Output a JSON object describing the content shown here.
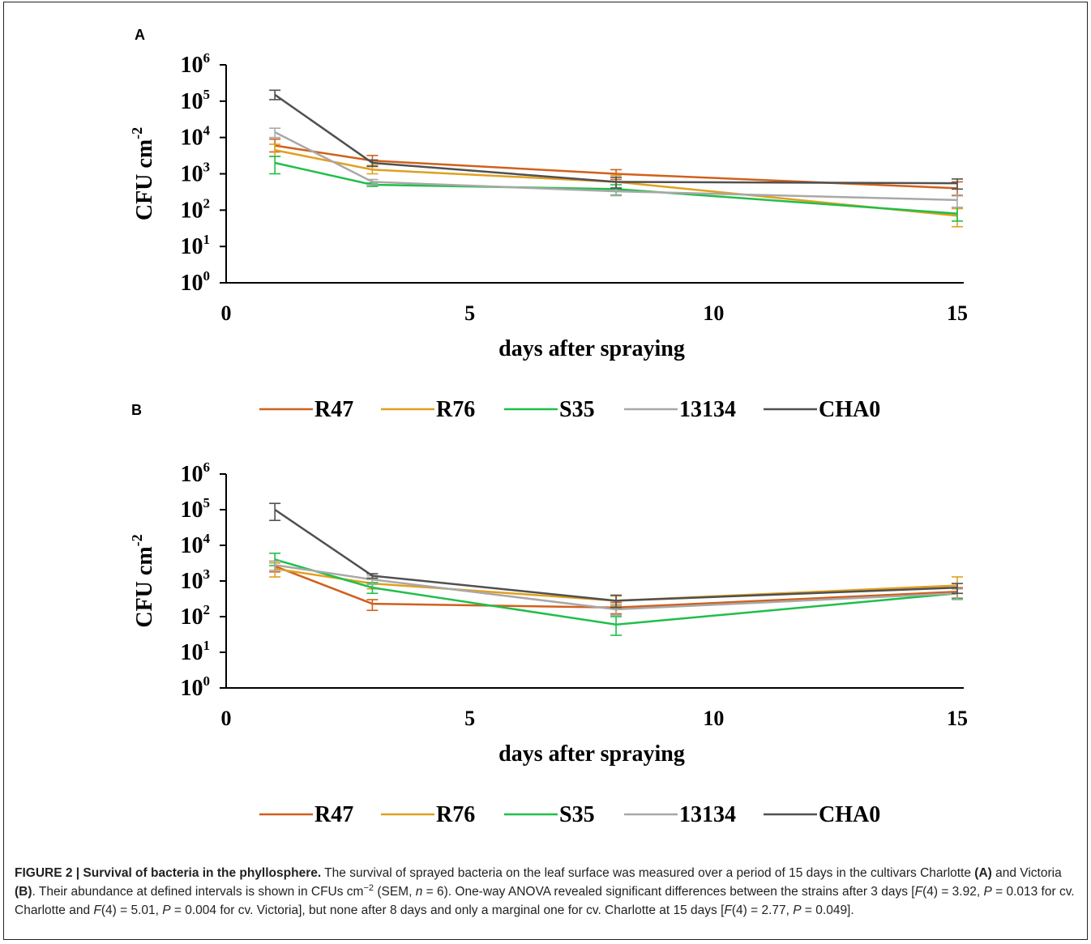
{
  "colors": {
    "R47": "#d1601c",
    "R76": "#e0a020",
    "S35": "#1fbf4a",
    "13134": "#a8a8a8",
    "CHA0": "#505050"
  },
  "chart_data": [
    {
      "type": "line",
      "panel_label": "A",
      "xlabel": "days after spraying",
      "ylabel": "CFU cm-2",
      "ylabel_base": "CFU cm",
      "ylabel_exp": "-2",
      "yscale": "log",
      "xlim": [
        0,
        15
      ],
      "ylim": [
        1,
        1000000
      ],
      "xticks": [
        "0",
        "5",
        "10",
        "15"
      ],
      "yticks": [
        {
          "base": "10",
          "exp": "0"
        },
        {
          "base": "10",
          "exp": "1"
        },
        {
          "base": "10",
          "exp": "2"
        },
        {
          "base": "10",
          "exp": "3"
        },
        {
          "base": "10",
          "exp": "4"
        },
        {
          "base": "10",
          "exp": "5"
        },
        {
          "base": "10",
          "exp": "6"
        }
      ],
      "x": [
        1,
        3,
        8,
        15
      ],
      "legend_position": "bottom",
      "series": [
        {
          "name": "R47",
          "values": [
            6000,
            2300,
            1000,
            400
          ],
          "err_low": [
            4000,
            1600,
            700,
            250
          ],
          "err_high": [
            9000,
            3200,
            1300,
            600
          ]
        },
        {
          "name": "R76",
          "values": [
            4500,
            1300,
            600,
            70
          ],
          "err_low": [
            3000,
            1000,
            400,
            35
          ],
          "err_high": [
            6500,
            1700,
            900,
            110
          ]
        },
        {
          "name": "S35",
          "values": [
            2000,
            500,
            380,
            80
          ],
          "err_low": [
            1000,
            450,
            260,
            50
          ],
          "err_high": [
            3000,
            560,
            500,
            120
          ]
        },
        {
          "name": "13134",
          "values": [
            14000,
            600,
            330,
            190
          ],
          "err_low": [
            10000,
            500,
            250,
            120
          ],
          "err_high": [
            18000,
            700,
            420,
            260
          ]
        },
        {
          "name": "CHA0",
          "values": [
            150000,
            2000,
            600,
            550
          ],
          "err_low": [
            110000,
            1600,
            400,
            380
          ],
          "err_high": [
            200000,
            2400,
            800,
            720
          ]
        }
      ]
    },
    {
      "type": "line",
      "panel_label": "B",
      "xlabel": "days after spraying",
      "ylabel": "CFU cm-2",
      "ylabel_base": "CFU cm",
      "ylabel_exp": "-2",
      "yscale": "log",
      "xlim": [
        0,
        15
      ],
      "ylim": [
        1,
        1000000
      ],
      "xticks": [
        "0",
        "5",
        "10",
        "15"
      ],
      "yticks": [
        {
          "base": "10",
          "exp": "0"
        },
        {
          "base": "10",
          "exp": "1"
        },
        {
          "base": "10",
          "exp": "2"
        },
        {
          "base": "10",
          "exp": "3"
        },
        {
          "base": "10",
          "exp": "4"
        },
        {
          "base": "10",
          "exp": "5"
        },
        {
          "base": "10",
          "exp": "6"
        }
      ],
      "x": [
        1,
        3,
        8,
        15
      ],
      "legend_position": "bottom",
      "series": [
        {
          "name": "R47",
          "values": [
            2600,
            230,
            180,
            500
          ],
          "err_low": [
            1800,
            150,
            120,
            330
          ],
          "err_high": [
            3600,
            300,
            250,
            650
          ]
        },
        {
          "name": "R76",
          "values": [
            2200,
            850,
            280,
            750
          ],
          "err_low": [
            1300,
            600,
            200,
            450
          ],
          "err_high": [
            3200,
            1100,
            380,
            1300
          ]
        },
        {
          "name": "S35",
          "values": [
            4000,
            650,
            60,
            450
          ],
          "err_low": [
            2700,
            450,
            30,
            320
          ],
          "err_high": [
            6000,
            900,
            100,
            600
          ]
        },
        {
          "name": "13134",
          "values": [
            2800,
            1100,
            160,
            450
          ],
          "err_low": [
            2000,
            800,
            110,
            300
          ],
          "err_high": [
            3600,
            1400,
            220,
            600
          ]
        },
        {
          "name": "CHA0",
          "values": [
            100000,
            1400,
            280,
            650
          ],
          "err_low": [
            50000,
            1200,
            180,
            450
          ],
          "err_high": [
            150000,
            1600,
            400,
            850
          ]
        }
      ]
    }
  ],
  "caption": {
    "figure_label": "FIGURE 2 | Survival of bacteria in the phyllosphere.",
    "p1": " The survival of sprayed bacteria on the leaf surface was measured over a period of 15 days in the cultivars Charlotte ",
    "a": "(A)",
    "p2": " and Victoria ",
    "b": "(B)",
    "p3": ". Their abundance at defined intervals is shown in CFUs cm",
    "sup": "−2",
    "p4": " (SEM, ",
    "n": "n",
    "p5": " = 6). One-way ANOVA revealed significant differences between the strains after 3 days [",
    "F1": "F",
    "p6": "(4) = 3.92, ",
    "P1": "P",
    "p7": " = 0.013 for cv. Charlotte and ",
    "F2": "F",
    "p8": "(4) = 5.01, ",
    "P2": "P",
    "p9": " = 0.004 for cv. Victoria], but none after 8 days and only a marginal one for cv. Charlotte at 15 days [",
    "F3": "F",
    "p10": "(4) = 2.77, ",
    "P3": "P",
    "p11": " = 0.049]."
  }
}
